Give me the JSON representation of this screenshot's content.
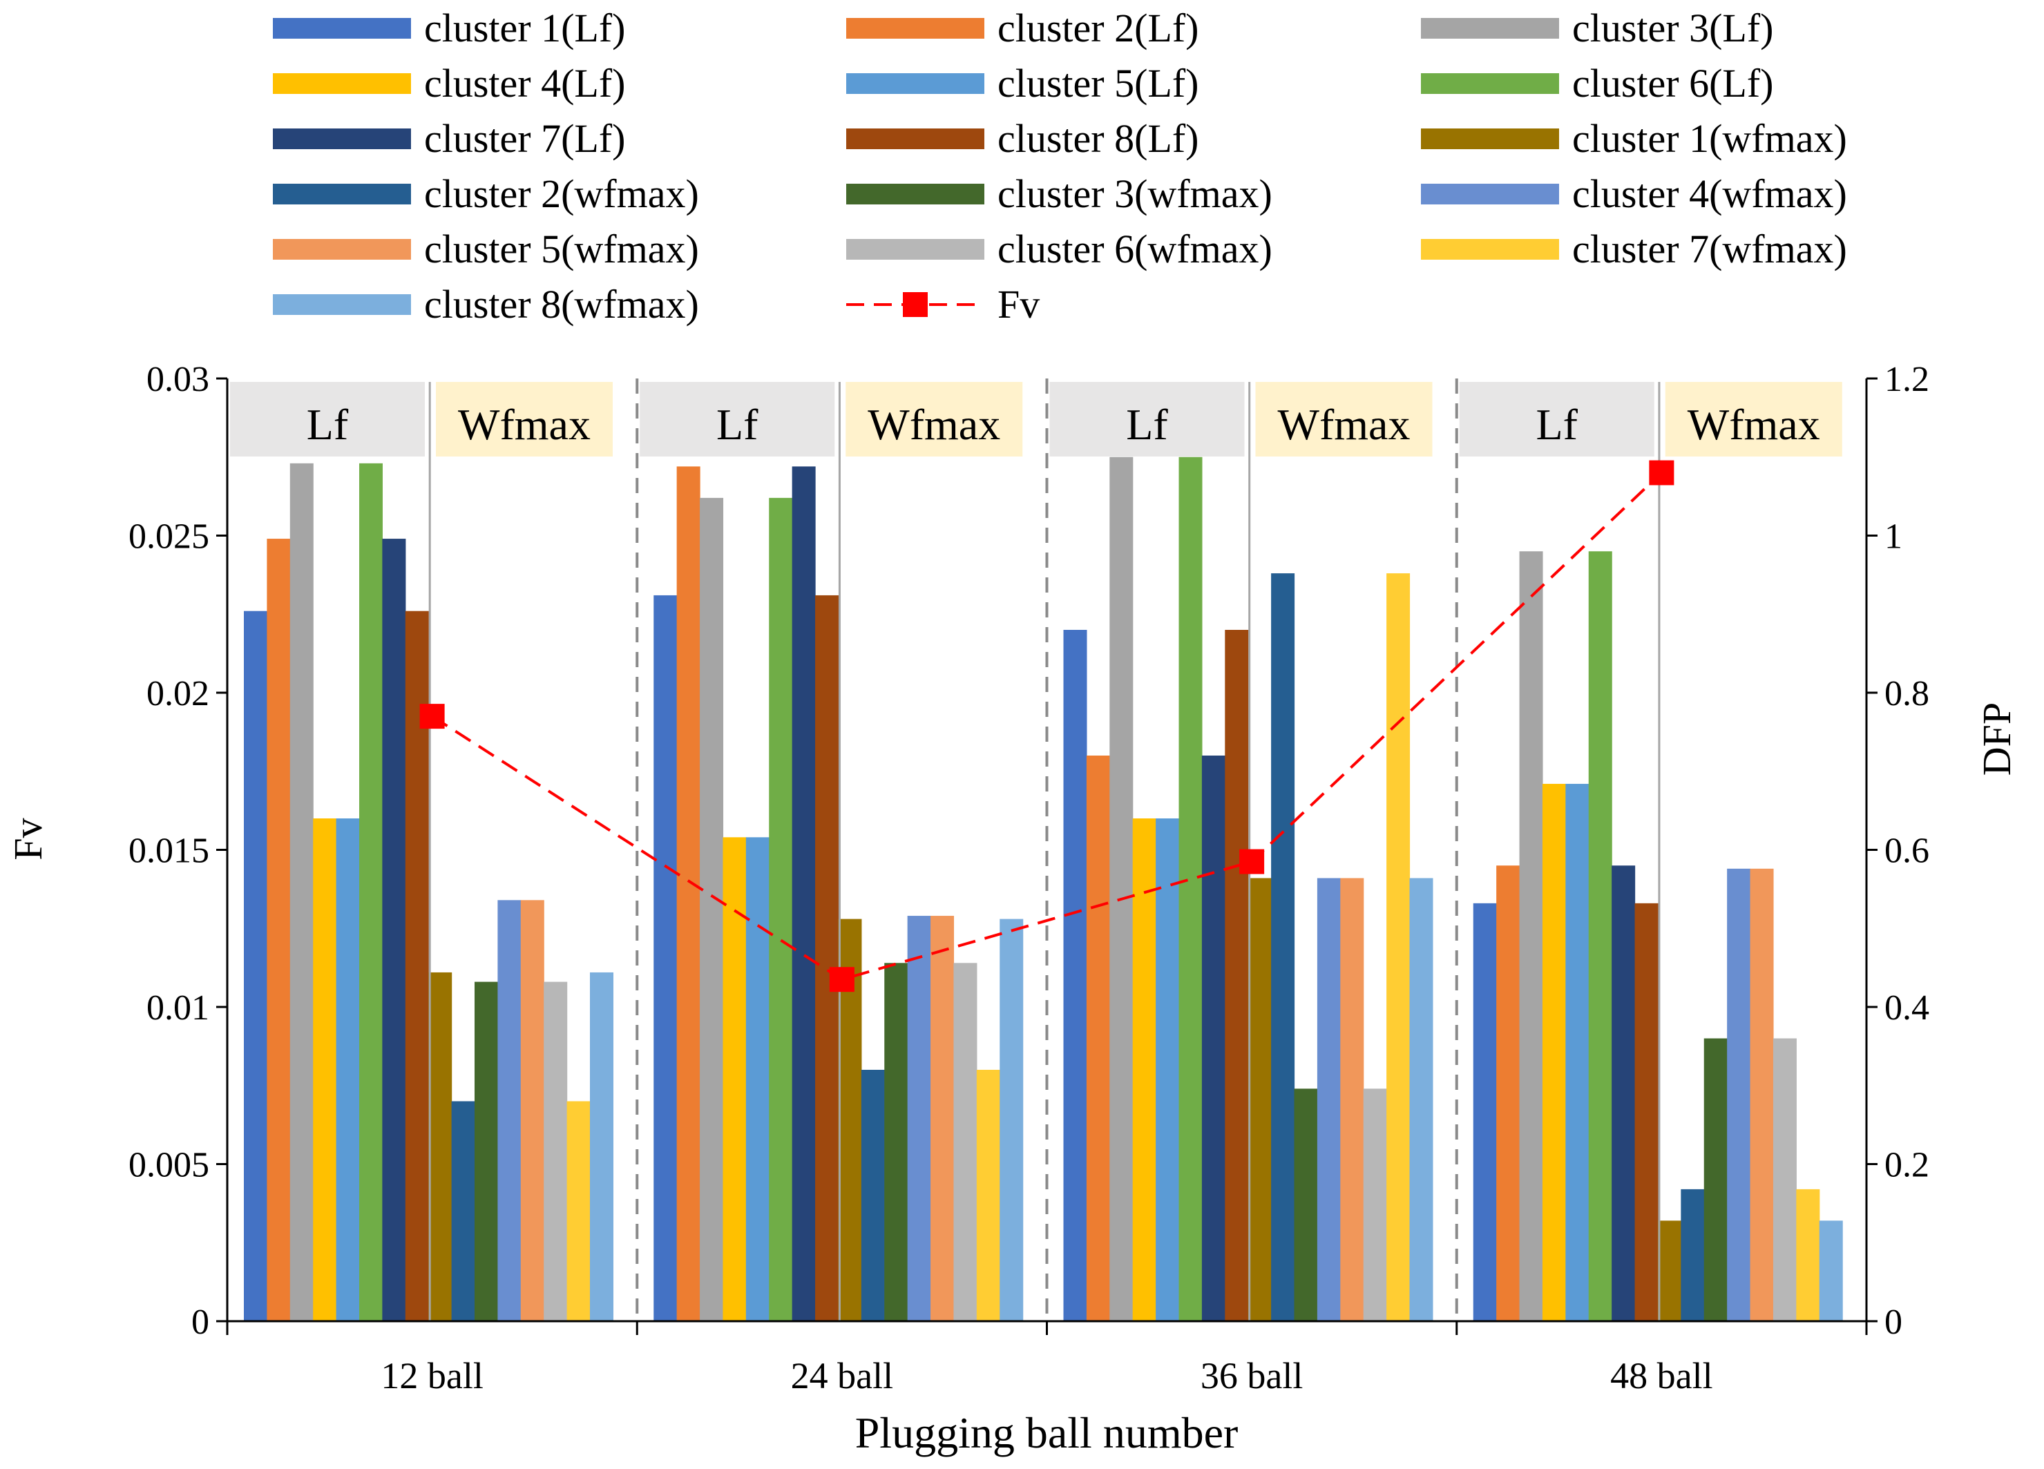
{
  "chart_data": {
    "type": "bar",
    "xlabel": "Plugging ball number",
    "ylabel": "Fv",
    "y2label": "DFP",
    "ylim": [
      0,
      0.03
    ],
    "y2lim": [
      0,
      1.2
    ],
    "yticks": [
      "0",
      "0.005",
      "0.01",
      "0.015",
      "0.02",
      "0.025",
      "0.03"
    ],
    "y2ticks": [
      "0",
      "0.2",
      "0.4",
      "0.6",
      "0.8",
      "1",
      "1.2"
    ],
    "categories": [
      "12 ball",
      "24 ball",
      "36 ball",
      "48 ball"
    ],
    "group_labels": {
      "lf": "Lf",
      "wf": "Wfmax"
    },
    "grid": false,
    "legend_position": "top",
    "series": [
      {
        "name": "cluster 1(Lf)",
        "color": "#4472c4",
        "values": [
          0.0226,
          0.0231,
          0.022,
          0.0133
        ]
      },
      {
        "name": "cluster 2(Lf)",
        "color": "#ed7d31",
        "values": [
          0.0249,
          0.0272,
          0.018,
          0.0145
        ]
      },
      {
        "name": "cluster 3(Lf)",
        "color": "#a5a5a5",
        "values": [
          0.0273,
          0.0262,
          0.0275,
          0.0245
        ]
      },
      {
        "name": "cluster 4(Lf)",
        "color": "#ffc000",
        "values": [
          0.016,
          0.0154,
          0.016,
          0.0171
        ]
      },
      {
        "name": "cluster 5(Lf)",
        "color": "#5b9bd5",
        "values": [
          0.016,
          0.0154,
          0.016,
          0.0171
        ]
      },
      {
        "name": "cluster 6(Lf)",
        "color": "#70ad47",
        "values": [
          0.0273,
          0.0262,
          0.0275,
          0.0245
        ]
      },
      {
        "name": "cluster 7(Lf)",
        "color": "#264478",
        "values": [
          0.0249,
          0.0272,
          0.018,
          0.0145
        ]
      },
      {
        "name": "cluster 8(Lf)",
        "color": "#9e480e",
        "values": [
          0.0226,
          0.0231,
          0.022,
          0.0133
        ]
      },
      {
        "name": "cluster 1(wfmax)",
        "color": "#997300",
        "values": [
          0.0111,
          0.0128,
          0.0141,
          0.0032
        ]
      },
      {
        "name": "cluster 2(wfmax)",
        "color": "#255e91",
        "values": [
          0.007,
          0.008,
          0.0238,
          0.0042
        ]
      },
      {
        "name": "cluster 3(wfmax)",
        "color": "#43682b",
        "values": [
          0.0108,
          0.0114,
          0.0074,
          0.009
        ]
      },
      {
        "name": "cluster 4(wfmax)",
        "color": "#698ed0",
        "values": [
          0.0134,
          0.0129,
          0.0141,
          0.0144
        ]
      },
      {
        "name": "cluster 5(wfmax)",
        "color": "#f1975a",
        "values": [
          0.0134,
          0.0129,
          0.0141,
          0.0144
        ]
      },
      {
        "name": "cluster 6(wfmax)",
        "color": "#b7b7b7",
        "values": [
          0.0108,
          0.0114,
          0.0074,
          0.009
        ]
      },
      {
        "name": "cluster 7(wfmax)",
        "color": "#ffcd33",
        "values": [
          0.007,
          0.008,
          0.0238,
          0.0042
        ]
      },
      {
        "name": "cluster 8(wfmax)",
        "color": "#7cafdd",
        "values": [
          0.0111,
          0.0128,
          0.0141,
          0.0032
        ]
      }
    ],
    "line_series": {
      "name": "Fv",
      "axis": "right",
      "color": "#ff0000",
      "values": [
        0.77,
        0.435,
        0.585,
        1.08
      ]
    }
  }
}
